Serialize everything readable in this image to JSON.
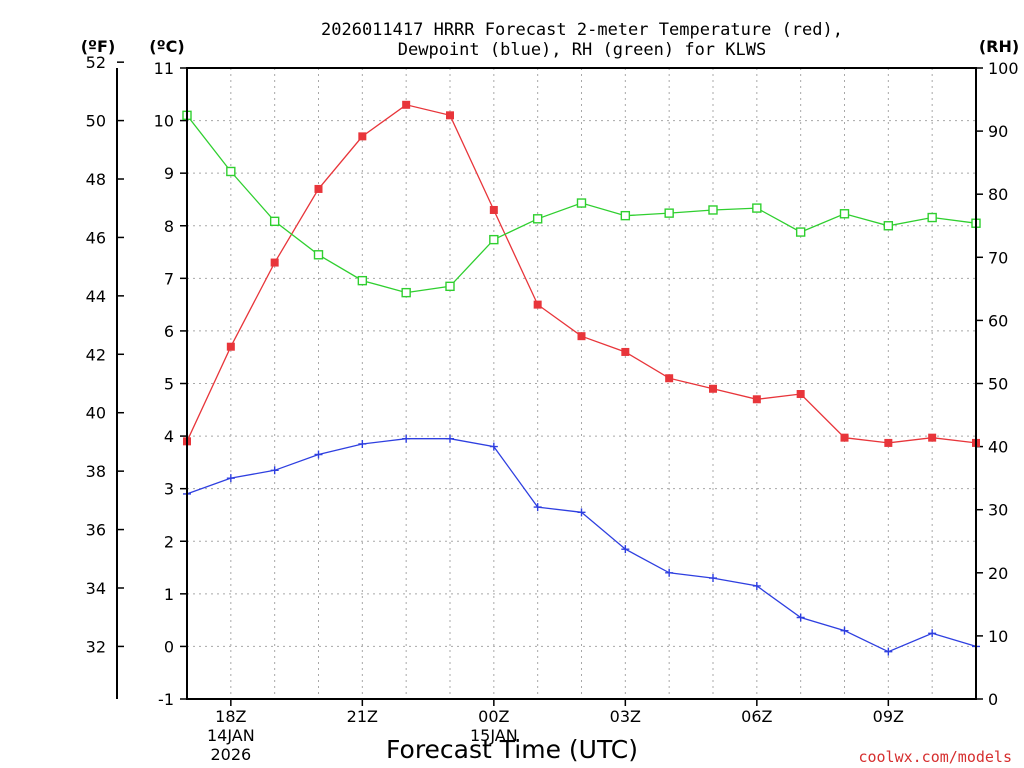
{
  "chart_data": {
    "type": "line",
    "title_line1": "2026011417 HRRR Forecast 2-meter Temperature (red),",
    "title_line2": "Dewpoint (blue), RH (green) for KLWS",
    "unit_labels": {
      "fahrenheit": "(ºF)",
      "celsius": "(ºC)",
      "rh": "(RH)"
    },
    "xlabel": "Forecast Time (UTC)",
    "credit": "coolwx.com/models",
    "grid": true,
    "x_hours": [
      0,
      1,
      2,
      3,
      4,
      5,
      6,
      7,
      8,
      9,
      10,
      11,
      12,
      13,
      14,
      15,
      16,
      17,
      18
    ],
    "x_ticks": [
      {
        "hour": 1,
        "label": "18Z",
        "sub1": "14JAN",
        "sub2": "2026"
      },
      {
        "hour": 4,
        "label": "21Z",
        "sub1": "",
        "sub2": ""
      },
      {
        "hour": 7,
        "label": "00Z",
        "sub1": "15JAN",
        "sub2": ""
      },
      {
        "hour": 10,
        "label": "03Z",
        "sub1": "",
        "sub2": ""
      },
      {
        "hour": 13,
        "label": "06Z",
        "sub1": "",
        "sub2": ""
      },
      {
        "hour": 16,
        "label": "09Z",
        "sub1": "",
        "sub2": ""
      }
    ],
    "celsius_axis": {
      "min": -1,
      "max": 11,
      "ticks": [
        -1,
        0,
        1,
        2,
        3,
        4,
        5,
        6,
        7,
        8,
        9,
        10,
        11
      ]
    },
    "fahrenheit_axis": {
      "ticks": [
        32,
        34,
        36,
        38,
        40,
        42,
        44,
        46,
        48,
        50,
        52
      ]
    },
    "rh_axis": {
      "min": 0,
      "max": 100,
      "ticks": [
        0,
        10,
        20,
        30,
        40,
        50,
        60,
        70,
        80,
        90,
        100
      ]
    },
    "series": [
      {
        "name": "2-meter Temperature",
        "axis": "celsius",
        "color": "#e8353a",
        "marker": "filled-square",
        "values": [
          3.9,
          5.7,
          7.3,
          8.7,
          9.7,
          10.3,
          10.1,
          8.3,
          6.5,
          5.9,
          5.6,
          5.1,
          4.9,
          4.7,
          4.8,
          3.97,
          3.87,
          3.97,
          3.87
        ]
      },
      {
        "name": "Dewpoint",
        "axis": "celsius",
        "color": "#2e3fe0",
        "marker": "plus",
        "values": [
          2.9,
          3.2,
          3.35,
          3.65,
          3.85,
          3.95,
          3.95,
          3.8,
          2.65,
          2.55,
          1.85,
          1.4,
          1.3,
          1.15,
          0.55,
          0.3,
          -0.1,
          0.25,
          0.0
        ]
      },
      {
        "name": "RH",
        "axis": "rh",
        "color": "#2fcf2f",
        "marker": "open-square",
        "values": [
          92.5,
          83.6,
          75.7,
          70.4,
          66.3,
          64.4,
          65.4,
          72.8,
          76.1,
          78.6,
          76.6,
          77.0,
          77.5,
          77.8,
          74.0,
          76.9,
          75.0,
          76.3,
          75.4
        ]
      }
    ]
  }
}
